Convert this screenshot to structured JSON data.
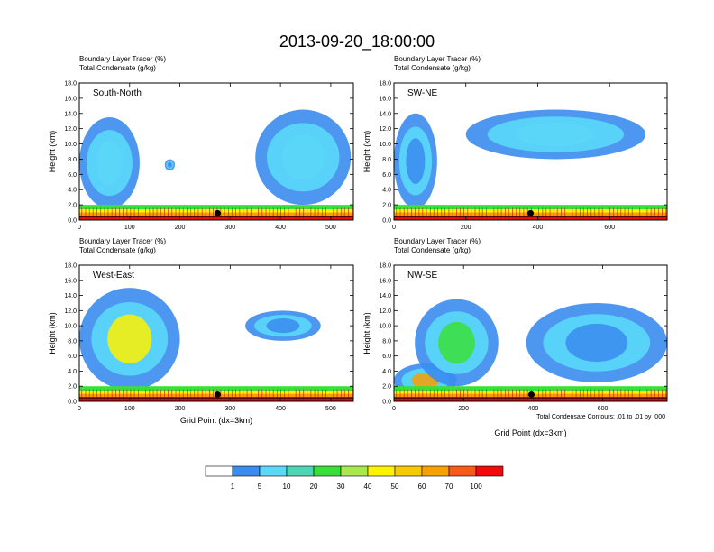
{
  "figure": {
    "title": "2013-09-20_18:00:00",
    "contour_note": "Total Condensate Contours: .01 to .01 by .000"
  },
  "colors": {
    "white": "#ffffff",
    "blue": "#3b8cf0",
    "cyan": "#5ad8f8",
    "teal": "#4cd6b4",
    "green": "#3ae03a",
    "lightgreen": "#a8e84c",
    "yellow": "#fff200",
    "gold": "#f8c800",
    "orange": "#f8a000",
    "redorange": "#f85a1a",
    "red": "#f00a0a"
  },
  "colorbar": {
    "labels": [
      "1",
      "5",
      "10",
      "20",
      "30",
      "40",
      "50",
      "60",
      "70",
      "100"
    ],
    "colors": [
      "#ffffff",
      "#3b8cf0",
      "#5ad8f8",
      "#4cd6b4",
      "#3ae03a",
      "#a8e84c",
      "#fff200",
      "#f8c800",
      "#f8a000",
      "#f85a1a",
      "#f00a0a"
    ]
  },
  "chart_data": [
    {
      "type": "heatmap",
      "subtitle_left_1": "Boundary Layer Tracer (%)",
      "subtitle_left_2": "Total Condensate (g/kg)",
      "panel_label": "South-North",
      "ylabel": "Height (km)",
      "xlabel": "",
      "xlim": [
        0,
        545
      ],
      "ylim": [
        0,
        18
      ],
      "xticks": [
        0,
        100,
        200,
        300,
        400,
        500
      ],
      "yticks": [
        "0.0",
        "2.0",
        "4.0",
        "6.0",
        "8.0",
        "10.0",
        "12.0",
        "14.0",
        "16.0",
        "18.0"
      ],
      "cloud_features": [
        {
          "x": [
            0,
            120
          ],
          "z": [
            1.5,
            13.5
          ],
          "level": "cyan"
        },
        {
          "x": [
            170,
            190
          ],
          "z": [
            6.5,
            8
          ],
          "level": "blue"
        },
        {
          "x": [
            350,
            540
          ],
          "z": [
            2,
            14.5
          ],
          "level": "cyan"
        }
      ],
      "marker_x": 275
    },
    {
      "type": "heatmap",
      "subtitle_left_1": "Boundary Layer Tracer (%)",
      "subtitle_left_2": "Total Condensate (g/kg)",
      "panel_label": "SW-NE",
      "ylabel": "Height (km)",
      "xlabel": "",
      "xlim": [
        0,
        760
      ],
      "ylim": [
        0,
        18
      ],
      "xticks": [
        0,
        200,
        400,
        600
      ],
      "yticks": [
        "0.0",
        "2.0",
        "4.0",
        "6.0",
        "8.0",
        "10.0",
        "12.0",
        "14.0",
        "16.0",
        "18.0"
      ],
      "cloud_features": [
        {
          "x": [
            0,
            120
          ],
          "z": [
            1.5,
            14
          ],
          "level": "blue"
        },
        {
          "x": [
            200,
            700
          ],
          "z": [
            8,
            14.5
          ],
          "level": "cyan"
        }
      ],
      "marker_x": 380
    },
    {
      "type": "heatmap",
      "subtitle_left_1": "Boundary Layer Tracer (%)",
      "subtitle_left_2": "Total Condensate (g/kg)",
      "panel_label": "West-East",
      "ylabel": "Height (km)",
      "xlabel": "Grid Point (dx=3km)",
      "xlim": [
        0,
        545
      ],
      "ylim": [
        0,
        18
      ],
      "xticks": [
        0,
        100,
        200,
        300,
        400,
        500
      ],
      "yticks": [
        "0.0",
        "2.0",
        "4.0",
        "6.0",
        "8.0",
        "10.0",
        "12.0",
        "14.0",
        "16.0",
        "18.0"
      ],
      "cloud_features": [
        {
          "x": [
            0,
            200
          ],
          "z": [
            1.5,
            15
          ],
          "level": "yellow"
        },
        {
          "x": [
            330,
            480
          ],
          "z": [
            8,
            12
          ],
          "level": "blue"
        }
      ],
      "marker_x": 275
    },
    {
      "type": "heatmap",
      "subtitle_left_1": "Boundary Layer Tracer (%)",
      "subtitle_left_2": "Total Condensate (g/kg)",
      "panel_label": "NW-SE",
      "ylabel": "Height (km)",
      "xlabel": "Grid Point (dx=3km)",
      "xlim": [
        0,
        785
      ],
      "ylim": [
        0,
        18
      ],
      "xticks": [
        0,
        200,
        400,
        600
      ],
      "yticks": [
        "0.0",
        "2.0",
        "4.0",
        "6.0",
        "8.0",
        "10.0",
        "12.0",
        "14.0",
        "16.0",
        "18.0"
      ],
      "cloud_features": [
        {
          "x": [
            0,
            180
          ],
          "z": [
            0.5,
            5
          ],
          "level": "orange"
        },
        {
          "x": [
            60,
            300
          ],
          "z": [
            2,
            13.5
          ],
          "level": "green"
        },
        {
          "x": [
            380,
            785
          ],
          "z": [
            2.5,
            13
          ],
          "level": "blue"
        }
      ],
      "marker_x": 395
    }
  ]
}
